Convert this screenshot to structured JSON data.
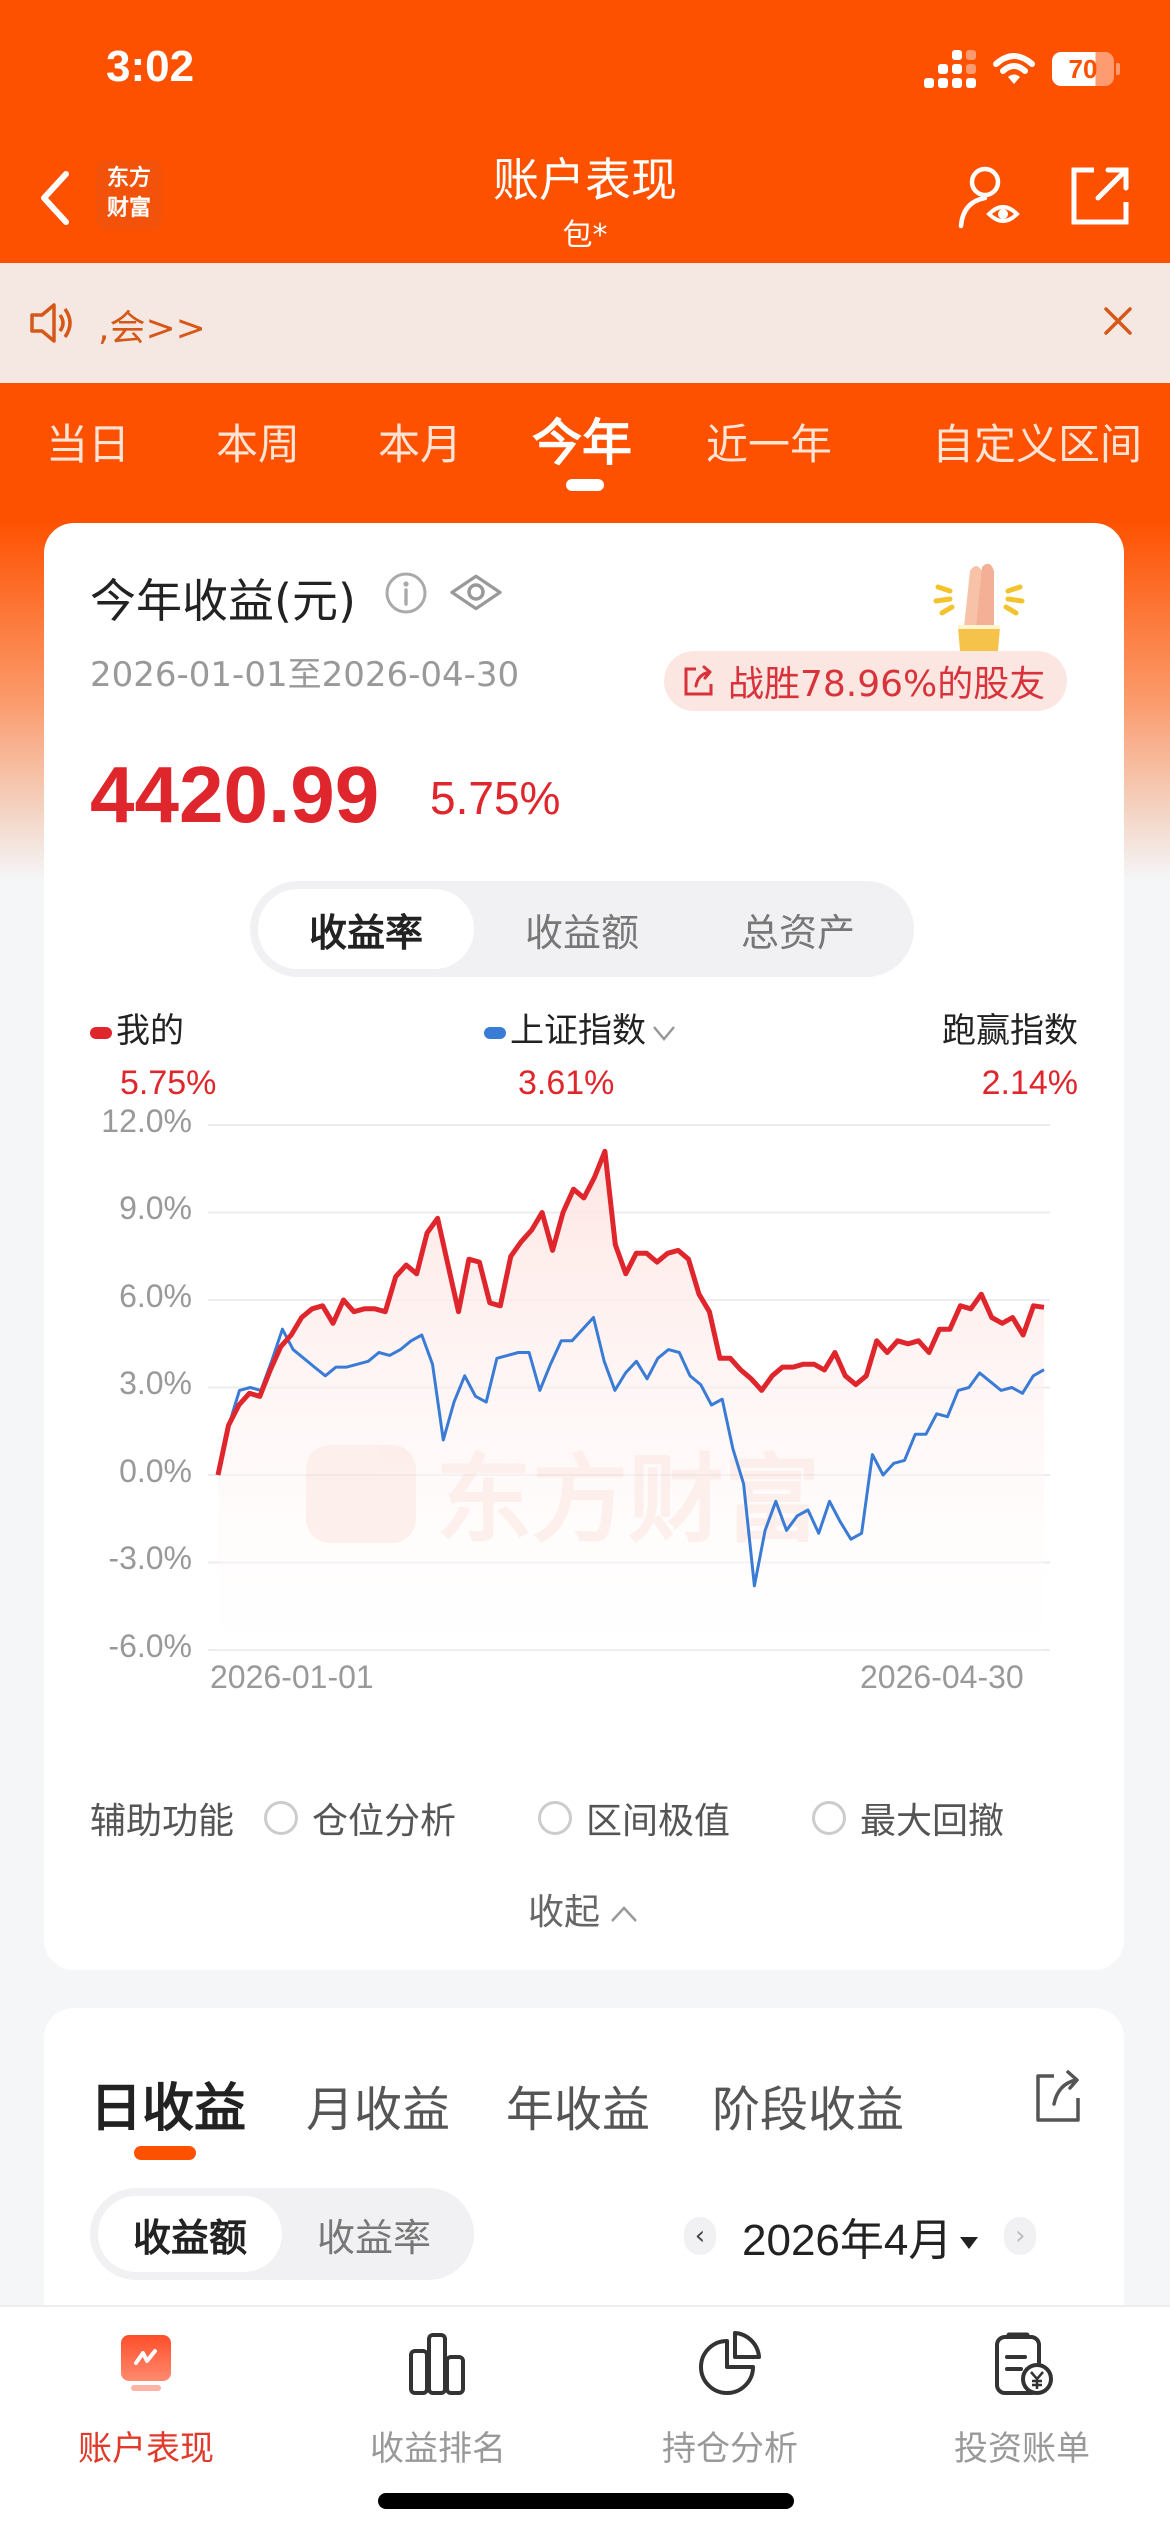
{
  "status_bar": {
    "time": "3:02",
    "battery": "70"
  },
  "nav": {
    "logo_line1": "东方",
    "logo_line2": "财富",
    "title": "账户表现",
    "subtitle": "包*"
  },
  "notice": {
    "text": ",会>>"
  },
  "period_tabs": [
    {
      "label": "当日",
      "active": false
    },
    {
      "label": "本周",
      "active": false
    },
    {
      "label": "本月",
      "active": false
    },
    {
      "label": "今年",
      "active": true
    },
    {
      "label": "近一年",
      "active": false
    },
    {
      "label": "自定义区间",
      "active": false
    }
  ],
  "summary": {
    "title": "今年收益(元)",
    "date_range": "2026-01-01至2026-04-30",
    "beat_badge": "战胜78.96%的股友",
    "profit_amount": "4420.99",
    "profit_pct": "5.75%"
  },
  "metric_segment": [
    {
      "label": "收益率",
      "active": true
    },
    {
      "label": "收益额",
      "active": false
    },
    {
      "label": "总资产",
      "active": false
    }
  ],
  "legend": {
    "mine": {
      "label": "我的",
      "value": "5.75%",
      "color": "#e0262d"
    },
    "index": {
      "label": "上证指数",
      "value": "3.61%",
      "color": "#3a7bd5"
    },
    "beat": {
      "label": "跑赢指数",
      "value": "2.14%"
    }
  },
  "chart_data": {
    "type": "line",
    "title": "今年收益率走势",
    "xlabel": "",
    "ylabel": "收益率",
    "x_start": "2026-01-01",
    "x_end": "2026-04-30",
    "x_tick_labels": [
      "2026-01-01",
      "2026-04-30"
    ],
    "y_ticks": [
      "12.0%",
      "9.0%",
      "6.0%",
      "3.0%",
      "0.0%",
      "-3.0%",
      "-6.0%"
    ],
    "ylim": [
      -6.0,
      12.0
    ],
    "grid": true,
    "watermark": "东方财富",
    "series": [
      {
        "name": "我的",
        "color": "#e0262d",
        "values": [
          0.0,
          1.7,
          2.4,
          2.8,
          2.7,
          3.6,
          4.4,
          4.8,
          5.4,
          5.7,
          5.8,
          5.2,
          6.0,
          5.6,
          5.7,
          5.7,
          5.6,
          6.8,
          7.2,
          6.9,
          8.3,
          8.8,
          7.2,
          5.6,
          7.4,
          7.3,
          5.9,
          5.8,
          7.5,
          8.0,
          8.4,
          9.0,
          7.7,
          9.0,
          9.8,
          9.5,
          10.2,
          11.1,
          7.9,
          6.9,
          7.6,
          7.6,
          7.3,
          7.6,
          7.7,
          7.4,
          6.2,
          5.6,
          4.0,
          4.0,
          3.6,
          3.3,
          2.9,
          3.4,
          3.7,
          3.7,
          3.8,
          3.8,
          3.6,
          4.2,
          3.4,
          3.1,
          3.4,
          4.6,
          4.2,
          4.6,
          4.5,
          4.6,
          4.2,
          5.0,
          5.0,
          5.8,
          5.7,
          6.2,
          5.4,
          5.2,
          5.4,
          4.8,
          5.8,
          5.75
        ]
      },
      {
        "name": "上证指数",
        "color": "#3a7bd5",
        "values": [
          0.0,
          1.7,
          2.9,
          3.0,
          2.9,
          3.9,
          5.0,
          4.3,
          4.0,
          3.7,
          3.4,
          3.7,
          3.7,
          3.8,
          3.9,
          4.2,
          4.1,
          4.3,
          4.6,
          4.8,
          3.8,
          1.2,
          2.5,
          3.4,
          2.7,
          2.5,
          4.0,
          4.1,
          4.2,
          4.2,
          2.9,
          3.8,
          4.6,
          4.6,
          5.0,
          5.4,
          3.9,
          2.9,
          3.5,
          3.9,
          3.3,
          4.0,
          4.3,
          4.2,
          3.4,
          3.1,
          2.4,
          2.6,
          0.9,
          -0.3,
          -3.8,
          -1.9,
          -0.9,
          -1.9,
          -1.4,
          -1.2,
          -2.0,
          -0.9,
          -1.6,
          -2.2,
          -2.0,
          0.7,
          0.0,
          0.4,
          0.5,
          1.4,
          1.4,
          2.1,
          2.0,
          2.9,
          3.0,
          3.5,
          3.2,
          2.9,
          3.0,
          2.8,
          3.4,
          3.61
        ]
      }
    ]
  },
  "aux": {
    "label": "辅助功能",
    "options": [
      "仓位分析",
      "区间极值",
      "最大回撤"
    ],
    "collapse_label": "收起"
  },
  "daily": {
    "tabs": [
      {
        "label": "日收益",
        "active": true
      },
      {
        "label": "月收益",
        "active": false
      },
      {
        "label": "年收益",
        "active": false
      },
      {
        "label": "阶段收益",
        "active": false
      }
    ],
    "segment": [
      {
        "label": "收益额",
        "active": true
      },
      {
        "label": "收益率",
        "active": false
      }
    ],
    "month": "2026年4月",
    "prev": "‹",
    "next": "›"
  },
  "tabbar": [
    {
      "label": "账户表现",
      "icon": "chart-trend-icon",
      "active": true
    },
    {
      "label": "收益排名",
      "icon": "bar-ranking-icon",
      "active": false
    },
    {
      "label": "持仓分析",
      "icon": "pie-chart-icon",
      "active": false
    },
    {
      "label": "投资账单",
      "icon": "bill-yuan-icon",
      "active": false
    }
  ]
}
